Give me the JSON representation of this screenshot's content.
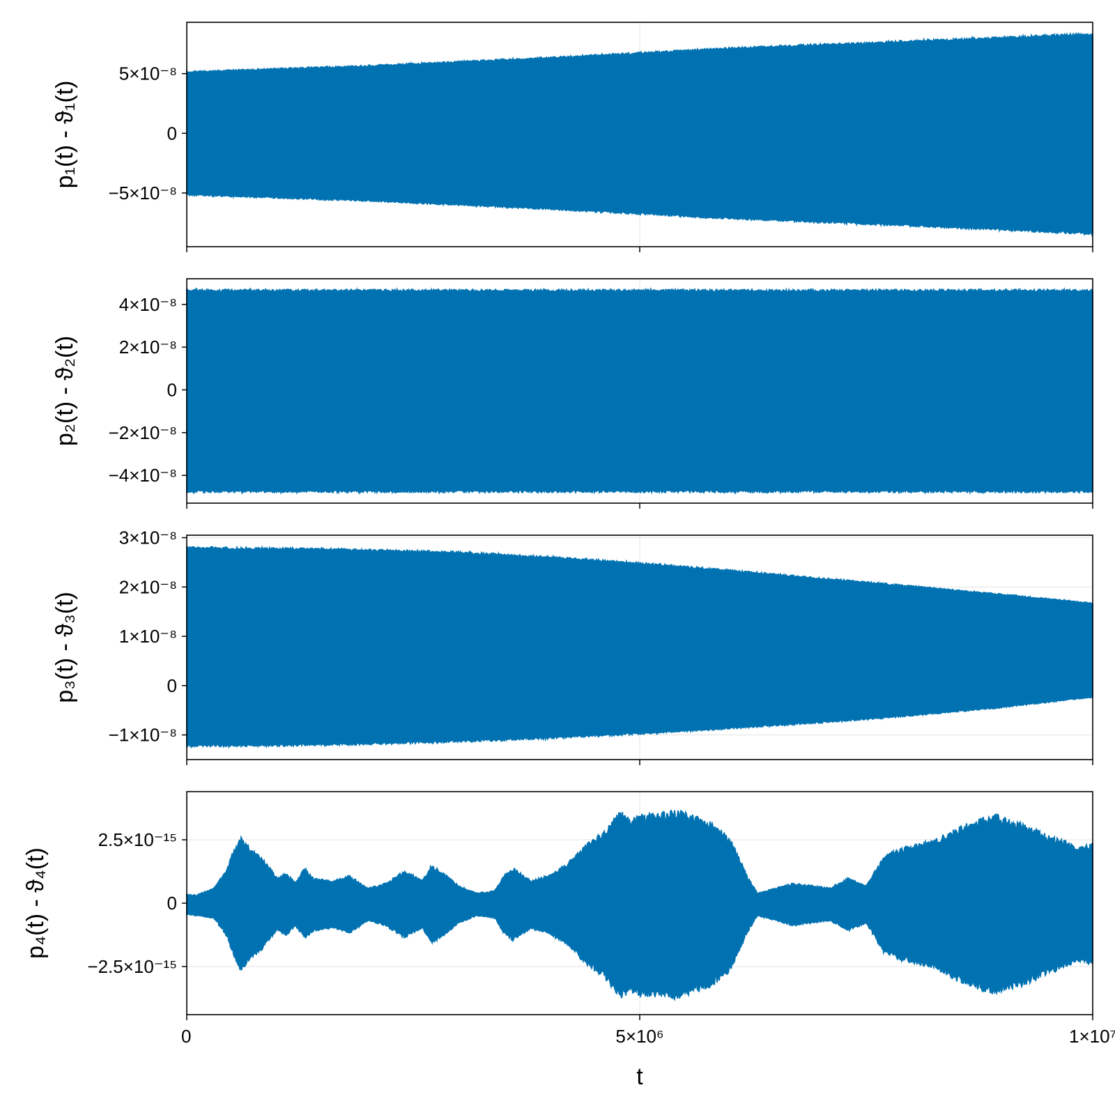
{
  "chart_data": [
    {
      "type": "area",
      "ylabel": "p₁(t) - ϑ₁(t)",
      "xlim": [
        0,
        10000000
      ],
      "ylim": [
        -9.5e-08,
        9.3e-08
      ],
      "x_ticks": [
        {
          "value": 0,
          "label": ""
        },
        {
          "value": 5000000,
          "label": ""
        },
        {
          "value": 10000000,
          "label": ""
        }
      ],
      "y_ticks": [
        {
          "value": 5e-08,
          "label": "5×10⁻⁸"
        },
        {
          "value": 0,
          "label": "0"
        },
        {
          "value": -5e-08,
          "label": "−5×10⁻⁸"
        }
      ],
      "grid": true,
      "color": "#0072b2",
      "envelope": {
        "x": [
          0,
          2000000,
          4000000,
          5000000,
          6000000,
          8000000,
          10000000
        ],
        "upper": [
          5.2e-08,
          5.7e-08,
          6.4e-08,
          6.8e-08,
          7.2e-08,
          7.8e-08,
          8.4e-08
        ],
        "lower": [
          -5.2e-08,
          -5.7e-08,
          -6.4e-08,
          -6.8e-08,
          -7.2e-08,
          -7.8e-08,
          -8.5e-08
        ]
      }
    },
    {
      "type": "area",
      "ylabel": "p₂(t) - ϑ₂(t)",
      "xlim": [
        0,
        10000000
      ],
      "ylim": [
        -5.3e-08,
        5.2e-08
      ],
      "x_ticks": [
        {
          "value": 0,
          "label": ""
        },
        {
          "value": 5000000,
          "label": ""
        },
        {
          "value": 10000000,
          "label": ""
        }
      ],
      "y_ticks": [
        {
          "value": 4e-08,
          "label": "4×10⁻⁸"
        },
        {
          "value": 2e-08,
          "label": "2×10⁻⁸"
        },
        {
          "value": 0,
          "label": "0"
        },
        {
          "value": -2e-08,
          "label": "−2×10⁻⁸"
        },
        {
          "value": -4e-08,
          "label": "−4×10⁻⁸"
        }
      ],
      "grid": true,
      "color": "#0072b2",
      "envelope": {
        "x": [
          0,
          5000000,
          10000000
        ],
        "upper": [
          4.7e-08,
          4.7e-08,
          4.7e-08
        ],
        "lower": [
          -4.8e-08,
          -4.8e-08,
          -4.8e-08
        ]
      }
    },
    {
      "type": "area",
      "ylabel": "p₃(t) - ϑ₃(t)",
      "xlim": [
        0,
        10000000
      ],
      "ylim": [
        -1.5e-08,
        3.05e-08
      ],
      "x_ticks": [
        {
          "value": 0,
          "label": ""
        },
        {
          "value": 5000000,
          "label": ""
        },
        {
          "value": 10000000,
          "label": ""
        }
      ],
      "y_ticks": [
        {
          "value": 3e-08,
          "label": "3×10⁻⁸"
        },
        {
          "value": 2e-08,
          "label": "2×10⁻⁸"
        },
        {
          "value": 1e-08,
          "label": "1×10⁻⁸"
        },
        {
          "value": 0,
          "label": "0"
        },
        {
          "value": -1e-08,
          "label": "−1×10⁻⁸"
        }
      ],
      "grid": true,
      "color": "#0072b2",
      "envelope": {
        "x": [
          0,
          1000000,
          2000000,
          3000000,
          4000000,
          5000000,
          6000000,
          7000000,
          8000000,
          9000000,
          10000000
        ],
        "upper": [
          2.82e-08,
          2.8e-08,
          2.77e-08,
          2.72e-08,
          2.62e-08,
          2.5e-08,
          2.35e-08,
          2.19e-08,
          2.03e-08,
          1.86e-08,
          1.68e-08
        ],
        "lower": [
          -1.24e-08,
          -1.23e-08,
          -1.2e-08,
          -1.15e-08,
          -1.08e-08,
          -9.9e-09,
          -8.8e-09,
          -7.6e-09,
          -6.2e-09,
          -4.5e-09,
          -2.4e-09
        ]
      }
    },
    {
      "type": "area",
      "ylabel": "p₄(t) - ϑ₄(t)",
      "xlabel": "t",
      "xlim": [
        0,
        10000000
      ],
      "ylim": [
        -4.4e-15,
        4.4e-15
      ],
      "x_ticks": [
        {
          "value": 0,
          "label": "0"
        },
        {
          "value": 5000000,
          "label": "5×10⁶"
        },
        {
          "value": 10000000,
          "label": "1×10⁷"
        }
      ],
      "y_ticks": [
        {
          "value": 2.5e-15,
          "label": "2.5×10⁻¹⁵"
        },
        {
          "value": 0,
          "label": "0"
        },
        {
          "value": -2.5e-15,
          "label": "−2.5×10⁻¹⁵"
        }
      ],
      "grid": true,
      "color": "#0072b2",
      "envelope": {
        "x": [
          0,
          100000,
          300000,
          450000,
          500000,
          600000,
          700000,
          800000,
          900000,
          1000000,
          1100000,
          1200000,
          1300000,
          1400000,
          1600000,
          1800000,
          2000000,
          2200000,
          2400000,
          2600000,
          2700000,
          2800000,
          2900000,
          3000000,
          3200000,
          3400000,
          3500000,
          3600000,
          3800000,
          4000000,
          4200000,
          4400000,
          4500000,
          4600000,
          4700000,
          4800000,
          4900000,
          5000000,
          5200000,
          5400000,
          5600000,
          5800000,
          6000000,
          6100000,
          6200000,
          6300000,
          6500000,
          6700000,
          6900000,
          7100000,
          7300000,
          7500000,
          7700000,
          7900000,
          8100000,
          8300000,
          8500000,
          8700000,
          8900000,
          9100000,
          9300000,
          9500000,
          9700000,
          9850000,
          10000000
        ],
        "upper": [
          3.5e-16,
          3.2e-16,
          6e-16,
          1.4e-15,
          2e-15,
          2.6e-15,
          2.2e-15,
          1.9e-15,
          1.5e-15,
          1e-15,
          1.2e-15,
          8e-16,
          1.4e-15,
          1e-15,
          9e-16,
          1.1e-15,
          6e-16,
          8e-16,
          1.3e-15,
          9e-16,
          1.5e-15,
          1.3e-15,
          1e-15,
          7e-16,
          4e-16,
          5e-16,
          1.1e-15,
          1.4e-15,
          9e-16,
          1.1e-15,
          1.6e-15,
          2.3e-15,
          2.6e-15,
          2.8e-15,
          3.3e-15,
          3.7e-15,
          3.3e-15,
          3.5e-15,
          3.6e-15,
          3.7e-15,
          3.5e-15,
          3.2e-15,
          2.6e-15,
          1.8e-15,
          1e-15,
          4e-16,
          6e-16,
          8e-16,
          7e-16,
          6e-16,
          1e-15,
          7e-16,
          1.9e-15,
          2.2e-15,
          2.4e-15,
          2.6e-15,
          3e-15,
          3.3e-15,
          3.6e-15,
          3.3e-15,
          3.1e-15,
          2.7e-15,
          2.5e-15,
          2.2e-15,
          2.4e-15
        ],
        "lower": [
          -4.5e-16,
          -5e-16,
          -6e-16,
          -1.4e-15,
          -2e-15,
          -2.7e-15,
          -2.3e-15,
          -2e-15,
          -1.5e-15,
          -1.1e-15,
          -1.3e-15,
          -9e-16,
          -1.4e-15,
          -1.1e-15,
          -1e-15,
          -1.2e-15,
          -7e-16,
          -9e-16,
          -1.4e-15,
          -1e-15,
          -1.6e-15,
          -1.4e-15,
          -1.1e-15,
          -8e-16,
          -5e-16,
          -6e-16,
          -1.2e-15,
          -1.5e-15,
          -1e-15,
          -1.2e-15,
          -1.7e-15,
          -2.4e-15,
          -2.7e-15,
          -2.9e-15,
          -3.4e-15,
          -3.8e-15,
          -3.5e-15,
          -3.7e-15,
          -3.7e-15,
          -3.8e-15,
          -3.6e-15,
          -3.3e-15,
          -2.7e-15,
          -1.9e-15,
          -1.1e-15,
          -5e-16,
          -7e-16,
          -9e-16,
          -8e-16,
          -7e-16,
          -1.1e-15,
          -8e-16,
          -2e-15,
          -2.3e-15,
          -2.5e-15,
          -2.7e-15,
          -3.1e-15,
          -3.4e-15,
          -3.6e-15,
          -3.4e-15,
          -3.2e-15,
          -2.8e-15,
          -2.6e-15,
          -2.3e-15,
          -2.5e-15
        ]
      }
    }
  ]
}
